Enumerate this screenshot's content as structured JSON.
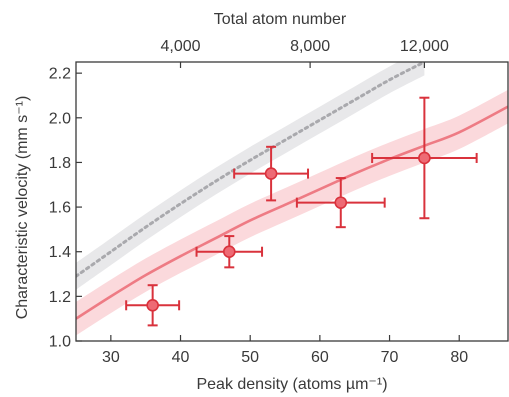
{
  "colors": {
    "theory": "#ee7b84",
    "theory_band": "#fbd9dc",
    "reference": "#a9a9ad",
    "reference_band": "#e8e8ea",
    "data_marker_fill": "#ee6a74",
    "data_marker_edge": "#d9323c",
    "error_bar": "#d9323c",
    "axis": "#3a3a3a"
  },
  "chart_data": {
    "type": "scatter",
    "xlabel": "Peak density (atoms µm⁻¹)",
    "ylabel": "Characteristic velocity (mm s⁻¹)",
    "top_xlabel": "Total atom number",
    "xlim": [
      25,
      87
    ],
    "ylim": [
      1.0,
      2.25
    ],
    "x_ticks": [
      30,
      40,
      50,
      60,
      70,
      80
    ],
    "x_tick_labels": [
      "30",
      "40",
      "50",
      "60",
      "70",
      "80"
    ],
    "y_ticks": [
      1.0,
      1.2,
      1.4,
      1.6,
      1.8,
      2.0,
      2.2
    ],
    "y_tick_labels": [
      "1.0",
      "1.2",
      "1.4",
      "1.6",
      "1.8",
      "2.0",
      "2.2"
    ],
    "top_ticks": [
      {
        "x": 40,
        "label": "4,000"
      },
      {
        "x": 58.6,
        "label": "8,000"
      },
      {
        "x": 75,
        "label": "12,000"
      }
    ],
    "points": [
      {
        "x": 36,
        "y": 1.16,
        "xerr": 3.8,
        "yerr": 0.09
      },
      {
        "x": 47,
        "y": 1.4,
        "xerr": 4.7,
        "yerr": 0.07
      },
      {
        "x": 53,
        "y": 1.75,
        "xerr": 5.3,
        "yerr": 0.12
      },
      {
        "x": 63,
        "y": 1.62,
        "xerr": 6.3,
        "yerr": 0.11
      },
      {
        "x": 75,
        "y": 1.82,
        "xerr": 7.5,
        "yerr": 0.27
      }
    ],
    "curves": [
      {
        "style": "solid",
        "x": [
          25,
          30,
          35,
          40,
          45,
          50,
          55,
          60,
          65,
          70,
          75,
          80,
          87
        ],
        "y": [
          1.1,
          1.2,
          1.295,
          1.38,
          1.46,
          1.54,
          1.61,
          1.68,
          1.75,
          1.815,
          1.875,
          1.935,
          2.05
        ],
        "band_halfwidth": 0.075
      },
      {
        "style": "dotted",
        "x": [
          25,
          30,
          35,
          40,
          45,
          50,
          55,
          60,
          65,
          70,
          75
        ],
        "y": [
          1.29,
          1.4,
          1.51,
          1.615,
          1.715,
          1.81,
          1.9,
          1.99,
          2.08,
          2.17,
          2.25
        ],
        "band_halfwidth": 0.06
      }
    ]
  }
}
